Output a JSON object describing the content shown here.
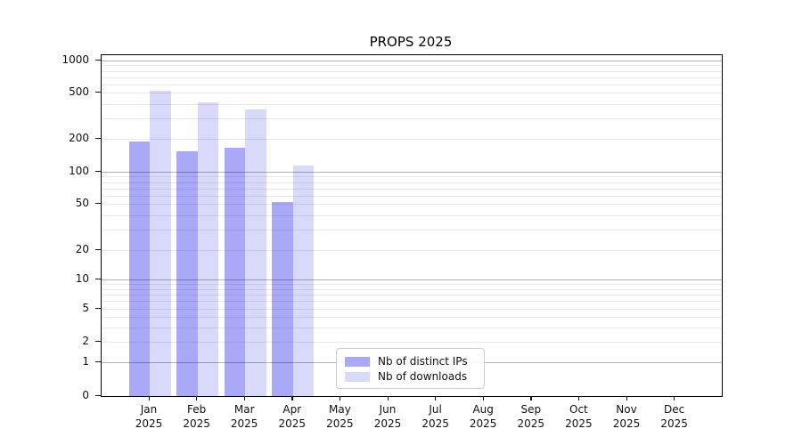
{
  "chart_data": {
    "type": "bar",
    "title": "PROPS 2025",
    "categories": [
      "Jan 2025",
      "Feb 2025",
      "Mar 2025",
      "Apr 2025",
      "May 2025",
      "Jun 2025",
      "Jul 2025",
      "Aug 2025",
      "Sep 2025",
      "Oct 2025",
      "Nov 2025",
      "Dec 2025"
    ],
    "series": [
      {
        "name": "Nb of distinct IPs",
        "color": "#a9a9f7",
        "values": [
          190,
          155,
          165,
          52,
          null,
          null,
          null,
          null,
          null,
          null,
          null,
          null
        ]
      },
      {
        "name": "Nb of downloads",
        "color": "#d9d9f9",
        "values": [
          520,
          410,
          360,
          115,
          null,
          null,
          null,
          null,
          null,
          null,
          null,
          null
        ]
      }
    ],
    "y_scale": "symlog",
    "y_ticks": [
      0,
      1,
      2,
      5,
      10,
      20,
      50,
      100,
      200,
      500,
      1000
    ],
    "y_lim": [
      0,
      1150
    ],
    "xlabel": "",
    "ylabel": "",
    "grid": "horizontal major+minor",
    "legend_position": "bottom-center-inside",
    "colors": {
      "major_grid": "#b3b3b3",
      "minor_grid": "#e8e8e8",
      "spine": "#000000",
      "legend_border": "#cccccc"
    }
  }
}
